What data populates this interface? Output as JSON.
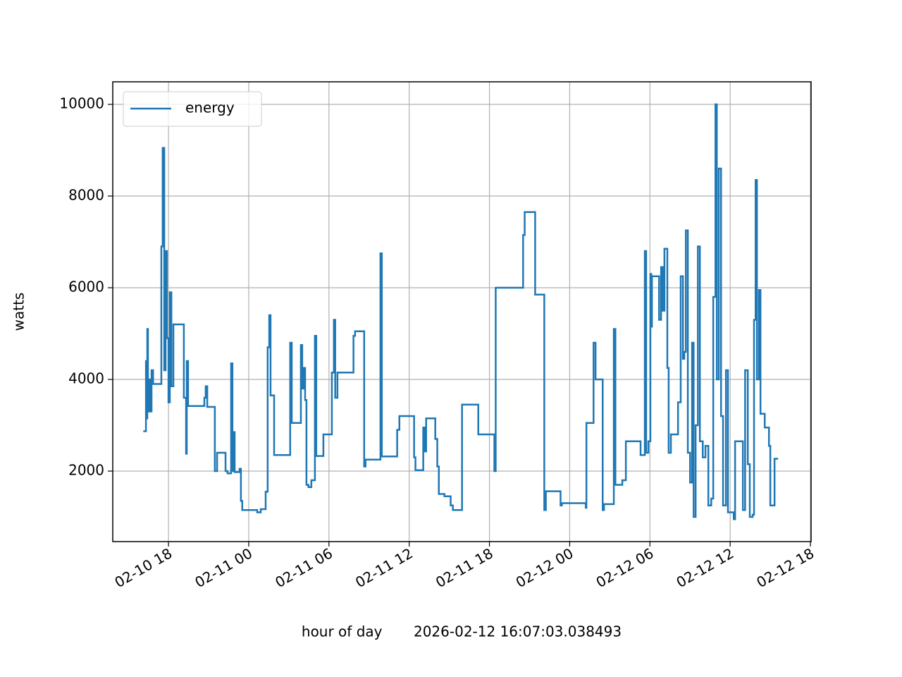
{
  "chart_data": {
    "type": "step",
    "xlabel": "hour of day       2026-02-12 16:07:03.038493",
    "ylabel": "watts",
    "legend": "upper left",
    "grid": true,
    "xlim": [
      "02-10 13:50",
      "02-12 18:03"
    ],
    "xticks": [
      "02-10 18",
      "02-11 00",
      "02-11 06",
      "02-11 12",
      "02-11 18",
      "02-12 00",
      "02-12 06",
      "02-12 12",
      "02-12 18"
    ],
    "ylim": [
      462,
      10492
    ],
    "yticks": [
      2000,
      4000,
      6000,
      8000,
      10000
    ],
    "x": [
      "02-10 16:07",
      "02-10 16:19",
      "02-10 16:22",
      "02-10 16:25",
      "02-10 16:28",
      "02-10 16:35",
      "02-10 16:41",
      "02-10 16:44",
      "02-10 16:51",
      "02-10 17:28",
      "02-10 17:34",
      "02-10 17:41",
      "02-10 17:47",
      "02-10 17:53",
      "02-10 18:00",
      "02-10 18:06",
      "02-10 18:13",
      "02-10 18:22",
      "02-10 19:09",
      "02-10 19:19",
      "02-10 19:22",
      "02-10 19:28",
      "02-10 20:41",
      "02-10 20:47",
      "02-10 20:54",
      "02-10 21:28",
      "02-10 21:38",
      "02-10 22:16",
      "02-10 22:25",
      "02-10 22:41",
      "02-10 22:47",
      "02-10 22:51",
      "02-10 22:57",
      "02-10 23:19",
      "02-10 23:25",
      "02-10 23:31",
      "02-11 00:38",
      "02-11 00:54",
      "02-11 01:16",
      "02-11 01:25",
      "02-11 01:32",
      "02-11 01:38",
      "02-11 01:54",
      "02-11 03:06",
      "02-11 03:13",
      "02-11 03:54",
      "02-11 04:00",
      "02-11 04:06",
      "02-11 04:13",
      "02-11 04:19",
      "02-11 04:28",
      "02-11 04:41",
      "02-11 04:57",
      "02-11 05:03",
      "02-11 05:35",
      "02-11 06:13",
      "02-11 06:22",
      "02-11 06:28",
      "02-11 06:38",
      "02-11 07:50",
      "02-11 07:57",
      "02-11 08:38",
      "02-11 08:44",
      "02-11 09:51",
      "02-11 09:57",
      "02-11 11:06",
      "02-11 11:16",
      "02-11 12:22",
      "02-11 12:28",
      "02-11 13:03",
      "02-11 13:09",
      "02-11 13:16",
      "02-11 13:57",
      "02-11 14:06",
      "02-11 14:13",
      "02-11 14:38",
      "02-11 15:06",
      "02-11 15:16",
      "02-11 15:57",
      "02-11 17:10",
      "02-11 18:22",
      "02-11 18:28",
      "02-11 20:31",
      "02-11 20:38",
      "02-11 21:25",
      "02-11 22:06",
      "02-11 22:13",
      "02-11 23:19",
      "02-11 23:25",
      "02-12 01:12",
      "02-12 01:15",
      "02-12 01:47",
      "02-12 01:56",
      "02-12 02:28",
      "02-12 02:34",
      "02-12 03:18",
      "02-12 03:25",
      "02-12 03:56",
      "02-12 04:12",
      "02-12 05:18",
      "02-12 05:37",
      "02-12 05:43",
      "02-12 05:53",
      "02-12 06:02",
      "02-12 06:06",
      "02-12 06:09",
      "02-12 06:41",
      "02-12 06:50",
      "02-12 06:57",
      "02-12 07:05",
      "02-12 07:18",
      "02-12 07:24",
      "02-12 07:34",
      "02-12 08:06",
      "02-12 08:18",
      "02-12 08:28",
      "02-12 08:34",
      "02-12 08:41",
      "02-12 08:50",
      "02-12 09:00",
      "02-12 09:09",
      "02-12 09:16",
      "02-12 09:25",
      "02-12 09:35",
      "02-12 09:44",
      "02-12 09:57",
      "02-12 10:09",
      "02-12 10:22",
      "02-12 10:35",
      "02-12 10:44",
      "02-12 10:54",
      "02-12 11:00",
      "02-12 11:09",
      "02-12 11:19",
      "02-12 11:28",
      "02-12 11:41",
      "02-12 11:50",
      "02-12 12:16",
      "02-12 12:22",
      "02-12 12:57",
      "02-12 13:07",
      "02-12 13:19",
      "02-12 13:28",
      "02-12 13:41",
      "02-12 13:47",
      "02-12 13:54",
      "02-12 14:00",
      "02-12 14:09",
      "02-12 14:16",
      "02-12 14:35",
      "02-12 14:54",
      "02-12 15:00",
      "02-12 15:19",
      "02-12 15:35"
    ],
    "series": [
      {
        "name": "energy",
        "color": "#1f77b4",
        "values": [
          2870,
          4400,
          3150,
          5100,
          3300,
          4000,
          3300,
          4200,
          3900,
          6900,
          9050,
          4200,
          6800,
          4900,
          3500,
          5900,
          3850,
          5200,
          3600,
          2380,
          4400,
          3420,
          3600,
          3850,
          3400,
          2000,
          2400,
          2000,
          1950,
          4350,
          2000,
          2850,
          1980,
          2050,
          1350,
          1150,
          1100,
          1170,
          1550,
          4700,
          5400,
          3650,
          2350,
          4800,
          3050,
          4750,
          3800,
          4250,
          3550,
          1700,
          1650,
          1800,
          4950,
          2330,
          2800,
          4150,
          5300,
          3600,
          4150,
          4950,
          5050,
          2100,
          2250,
          6750,
          2320,
          2900,
          3200,
          2300,
          2020,
          2950,
          2430,
          3150,
          2700,
          2100,
          1500,
          1450,
          1250,
          1150,
          3450,
          2800,
          2000,
          6000,
          7150,
          7650,
          5850,
          1150,
          1560,
          1250,
          1300,
          1200,
          3050,
          4800,
          4000,
          1150,
          1280,
          5100,
          1700,
          1800,
          2650,
          2350,
          6800,
          2400,
          2650,
          6300,
          5150,
          6250,
          5300,
          6450,
          5500,
          6850,
          4250,
          2400,
          2800,
          3500,
          6250,
          4450,
          4600,
          7250,
          2400,
          1750,
          4800,
          1000,
          3000,
          6900,
          2650,
          2300,
          2550,
          1250,
          1400,
          5800,
          10000,
          4000,
          8600,
          3200,
          1250,
          4200,
          1100,
          950,
          2650,
          1150,
          4200,
          2150,
          1000,
          1050,
          5300,
          8350,
          4000,
          5950,
          3250,
          2950,
          2550,
          1250,
          2270,
          2270
        ]
      }
    ]
  }
}
